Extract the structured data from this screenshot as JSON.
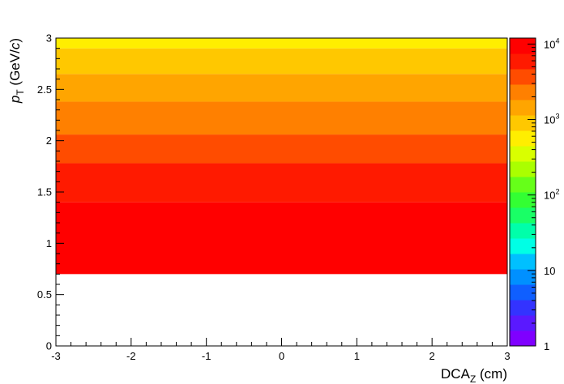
{
  "chart_data": {
    "type": "heatmap",
    "title": "",
    "xlabel": {
      "main": "DCA",
      "sub": "Z",
      "unit": " (cm)"
    },
    "ylabel": {
      "main": "p",
      "sub": "T",
      "unit_pre": " (GeV/",
      "unit_var": "c",
      "unit_post": ")"
    },
    "xlim": [
      -3,
      3
    ],
    "ylim": [
      0,
      3
    ],
    "x_ticks": [
      "-3",
      "-2",
      "-1",
      "0",
      "1",
      "2",
      "3"
    ],
    "y_ticks": [
      "0",
      "0.5",
      "1",
      "1.5",
      "2",
      "2.5",
      "3"
    ],
    "z_scale": "log",
    "zlim": [
      1,
      12000
    ],
    "z_ticks": [
      {
        "value": 1,
        "label": "1"
      },
      {
        "value": 10,
        "label": "10"
      },
      {
        "value": 100,
        "base": "10",
        "exp": "2"
      },
      {
        "value": 1000,
        "base": "10",
        "exp": "3"
      },
      {
        "value": 10000,
        "base": "10",
        "exp": "4"
      }
    ],
    "palette": [
      "#7f00ff",
      "#5a19ff",
      "#3333ff",
      "#0f5fff",
      "#0090ff",
      "#00c0ff",
      "#00ffe5",
      "#00ffaa",
      "#19ff66",
      "#33ff33",
      "#66ff19",
      "#aaff00",
      "#d9ff00",
      "#ffee00",
      "#ffc800",
      "#ffa500",
      "#ff8000",
      "#ff4c00",
      "#ff1a00",
      "#ff0000"
    ],
    "bands": [
      {
        "y_range": [
          0.7,
          1.4
        ],
        "count": 10000
      },
      {
        "y_range": [
          1.4,
          1.78
        ],
        "count": 6000
      },
      {
        "y_range": [
          1.78,
          2.06
        ],
        "count": 4000
      },
      {
        "y_range": [
          2.06,
          2.38
        ],
        "count": 2700
      },
      {
        "y_range": [
          2.38,
          2.65
        ],
        "count": 1700
      },
      {
        "y_range": [
          2.65,
          2.9
        ],
        "count": 1100
      },
      {
        "y_range": [
          2.9,
          3.0
        ],
        "count": 700
      }
    ]
  }
}
